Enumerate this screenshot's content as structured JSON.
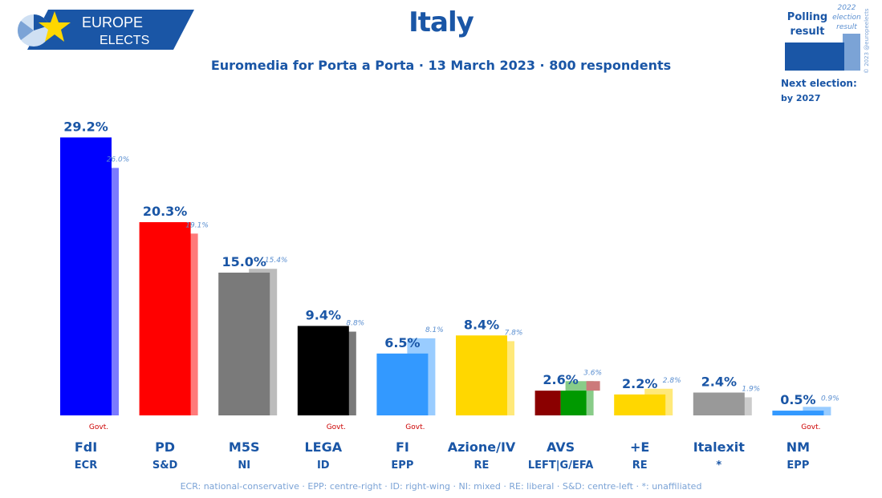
{
  "logo": {
    "line1": "EUROPE",
    "line2": "ELECTS"
  },
  "title": "Italy",
  "subtitle": "Euromedia for Porta a Porta · 13 March 2023 · 800 respondents",
  "legend": {
    "polling": "Polling",
    "result": "result",
    "prev1": "2022",
    "prev2": "election",
    "prev3": "result",
    "next_label": "Next election:",
    "next_value": "by 2027",
    "copyright": "© 2023 @europeelects"
  },
  "govt_label": "Govt.",
  "footer": "ECR: national-conservative · EPP: centre-right · ID: right-wing · NI: mixed · RE: liberal · S&D: centre-left · *: unaffiliated",
  "chart_data": {
    "type": "bar",
    "categories": [
      "FdI",
      "PD",
      "M5S",
      "LEGA",
      "FI",
      "Azione/IV",
      "AVS",
      "+E",
      "Italexit",
      "NM"
    ],
    "groups": [
      "ECR",
      "S&D",
      "NI",
      "ID",
      "EPP",
      "RE",
      "LEFT|G/EFA",
      "RE",
      "*",
      "EPP"
    ],
    "series": [
      {
        "values": [
          29.2,
          20.3,
          15.0,
          9.4,
          6.5,
          8.4,
          2.6,
          2.2,
          2.4,
          0.5
        ]
      },
      {
        "values": [
          26.0,
          19.1,
          15.4,
          8.8,
          8.1,
          7.8,
          3.6,
          2.8,
          1.9,
          0.9
        ]
      }
    ],
    "value_labels": [
      "29.2%",
      "20.3%",
      "15.0%",
      "9.4%",
      "6.5%",
      "8.4%",
      "2.6%",
      "2.2%",
      "2.4%",
      "0.5%"
    ],
    "prev_labels": [
      "26.0%",
      "19.1%",
      "15.4%",
      "8.8%",
      "8.1%",
      "7.8%",
      "3.6%",
      "2.8%",
      "1.9%",
      "0.9%"
    ],
    "govt": [
      true,
      false,
      false,
      true,
      true,
      false,
      false,
      false,
      false,
      true
    ],
    "colors": [
      "#0000ff",
      "#ff0000",
      "#7a7a7a",
      "#000000",
      "#3399ff",
      "#ffd700",
      "#8b0000",
      "#ffd700",
      "#999999",
      "#3399ff"
    ],
    "prev_colors": [
      "#7a7aff",
      "#ff7a7a",
      "#bcbcbc",
      "#7a7a7a",
      "#99ccff",
      "#ffe97a",
      "#88cc88",
      "#ffe97a",
      "#cccccc",
      "#99ccff"
    ],
    "stack_colors": [
      "#8b0000",
      "#009900"
    ],
    "ylim": [
      0,
      30
    ]
  }
}
